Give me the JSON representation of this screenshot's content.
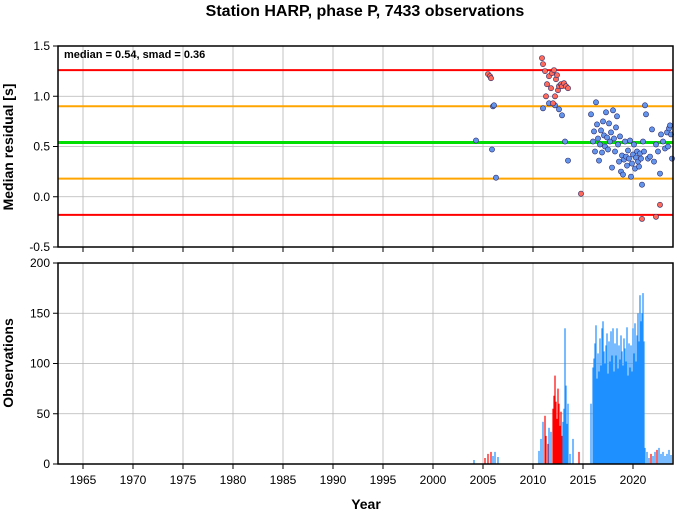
{
  "chart_data": [
    {
      "type": "scatter",
      "title": "Station HARP, phase P, 7433 observations",
      "ylabel": "Median residual [s]",
      "xlim": [
        1962.5,
        2024
      ],
      "ylim": [
        -0.5,
        1.5
      ],
      "xticks": [
        1965,
        1970,
        1975,
        1980,
        1985,
        1990,
        1995,
        2000,
        2005,
        2010,
        2015,
        2020
      ],
      "yticks": [
        "-0.5",
        "0.0",
        "0.5",
        "1.0",
        "1.5"
      ],
      "grid": true,
      "annotation": "median = 0.54, smad = 0.36",
      "reference_lines": [
        {
          "value": 1.26,
          "color": "#ff0000"
        },
        {
          "value": 0.9,
          "color": "#ffa500"
        },
        {
          "value": 0.54,
          "color": "#00dd00"
        },
        {
          "value": 0.18,
          "color": "#ffa500"
        },
        {
          "value": -0.18,
          "color": "#ff0000"
        }
      ],
      "series": [
        {
          "color": "#6495ed",
          "points": [
            [
              2004.3,
              0.56
            ],
            [
              2005.9,
              0.47
            ],
            [
              2006.0,
              0.9
            ],
            [
              2006.1,
              0.91
            ],
            [
              2006.3,
              0.19
            ],
            [
              2011.0,
              0.88
            ],
            [
              2011.6,
              0.93
            ],
            [
              2012.2,
              0.91
            ],
            [
              2012.6,
              0.87
            ],
            [
              2012.9,
              0.81
            ],
            [
              2013.2,
              0.55
            ],
            [
              2013.5,
              0.36
            ],
            [
              2015.8,
              0.82
            ],
            [
              2016.0,
              0.55
            ],
            [
              2016.1,
              0.65
            ],
            [
              2016.2,
              0.45
            ],
            [
              2016.3,
              0.94
            ],
            [
              2016.4,
              0.72
            ],
            [
              2016.5,
              0.58
            ],
            [
              2016.6,
              0.36
            ],
            [
              2016.7,
              0.52
            ],
            [
              2016.8,
              0.66
            ],
            [
              2016.9,
              0.44
            ],
            [
              2017.0,
              0.75
            ],
            [
              2017.1,
              0.61
            ],
            [
              2017.2,
              0.5
            ],
            [
              2017.3,
              0.84
            ],
            [
              2017.4,
              0.59
            ],
            [
              2017.5,
              0.47
            ],
            [
              2017.6,
              0.73
            ],
            [
              2017.7,
              0.55
            ],
            [
              2017.8,
              0.64
            ],
            [
              2017.9,
              0.29
            ],
            [
              2018.0,
              0.86
            ],
            [
              2018.1,
              0.58
            ],
            [
              2018.2,
              0.45
            ],
            [
              2018.3,
              0.69
            ],
            [
              2018.4,
              0.8
            ],
            [
              2018.5,
              0.52
            ],
            [
              2018.6,
              0.35
            ],
            [
              2018.7,
              0.6
            ],
            [
              2018.8,
              0.25
            ],
            [
              2018.9,
              0.41
            ],
            [
              2019.0,
              0.22
            ],
            [
              2019.1,
              0.37
            ],
            [
              2019.2,
              0.55
            ],
            [
              2019.3,
              0.4
            ],
            [
              2019.4,
              0.31
            ],
            [
              2019.5,
              0.46
            ],
            [
              2019.6,
              0.38
            ],
            [
              2019.7,
              0.56
            ],
            [
              2019.8,
              0.2
            ],
            [
              2019.9,
              0.33
            ],
            [
              2020.0,
              0.42
            ],
            [
              2020.1,
              0.52
            ],
            [
              2020.2,
              0.28
            ],
            [
              2020.3,
              0.39
            ],
            [
              2020.4,
              0.45
            ],
            [
              2020.5,
              0.35
            ],
            [
              2020.6,
              0.3
            ],
            [
              2020.7,
              0.43
            ],
            [
              2020.8,
              0.38
            ],
            [
              2020.9,
              0.12
            ],
            [
              2021.0,
              0.55
            ],
            [
              2021.1,
              0.45
            ],
            [
              2021.2,
              0.91
            ],
            [
              2021.3,
              0.82
            ],
            [
              2021.5,
              0.38
            ],
            [
              2021.7,
              0.4
            ],
            [
              2021.9,
              0.67
            ],
            [
              2022.1,
              0.35
            ],
            [
              2022.3,
              0.52
            ],
            [
              2022.5,
              0.45
            ],
            [
              2022.7,
              0.23
            ],
            [
              2022.8,
              0.62
            ],
            [
              2023.0,
              0.55
            ],
            [
              2023.2,
              0.48
            ],
            [
              2023.4,
              0.64
            ],
            [
              2023.5,
              0.5
            ],
            [
              2023.6,
              0.68
            ],
            [
              2023.7,
              0.71
            ],
            [
              2023.8,
              0.62
            ],
            [
              2023.9,
              0.38
            ]
          ]
        },
        {
          "color": "#ff6a5a",
          "points": [
            [
              2005.5,
              1.22
            ],
            [
              2005.7,
              1.2
            ],
            [
              2005.8,
              1.18
            ],
            [
              2010.9,
              1.38
            ],
            [
              2011.0,
              1.32
            ],
            [
              2011.2,
              1.25
            ],
            [
              2011.3,
              1.0
            ],
            [
              2011.4,
              1.12
            ],
            [
              2011.6,
              1.2
            ],
            [
              2011.8,
              1.08
            ],
            [
              2011.9,
              1.23
            ],
            [
              2012.0,
              0.93
            ],
            [
              2012.1,
              1.26
            ],
            [
              2012.2,
              1.0
            ],
            [
              2012.3,
              1.17
            ],
            [
              2012.4,
              1.21
            ],
            [
              2012.5,
              1.06
            ],
            [
              2012.6,
              1.1
            ],
            [
              2012.8,
              1.12
            ],
            [
              2012.9,
              1.1
            ],
            [
              2013.1,
              1.13
            ],
            [
              2013.3,
              1.1
            ],
            [
              2013.5,
              1.08
            ],
            [
              2014.8,
              0.03
            ],
            [
              2020.9,
              -0.22
            ],
            [
              2022.3,
              -0.2
            ],
            [
              2022.7,
              -0.08
            ]
          ]
        }
      ]
    },
    {
      "type": "bar",
      "xlabel": "Year",
      "ylabel": "Observations",
      "xlim": [
        1962.5,
        2024
      ],
      "ylim": [
        0,
        200
      ],
      "xticks": [
        1965,
        1970,
        1975,
        1980,
        1985,
        1990,
        1995,
        2000,
        2005,
        2010,
        2015,
        2020
      ],
      "yticks": [
        "0",
        "50",
        "100",
        "150",
        "200"
      ],
      "grid": true,
      "bars": [
        [
          2004.1,
          4,
          "b"
        ],
        [
          2005.2,
          6,
          "r"
        ],
        [
          2005.5,
          10,
          "r"
        ],
        [
          2005.8,
          12,
          "r"
        ],
        [
          2006.0,
          8,
          "b"
        ],
        [
          2006.2,
          12,
          "b"
        ],
        [
          2006.5,
          7,
          "b"
        ],
        [
          2010.6,
          13,
          "b"
        ],
        [
          2010.8,
          25,
          "b"
        ],
        [
          2011.0,
          42,
          "b"
        ],
        [
          2011.2,
          48,
          "r"
        ],
        [
          2011.3,
          28,
          "r"
        ],
        [
          2011.5,
          20,
          "r"
        ],
        [
          2011.6,
          36,
          "b"
        ],
        [
          2011.8,
          32,
          "b"
        ],
        [
          2012.0,
          55,
          "r"
        ],
        [
          2012.1,
          68,
          "r"
        ],
        [
          2012.2,
          88,
          "r"
        ],
        [
          2012.3,
          62,
          "r"
        ],
        [
          2012.4,
          45,
          "r"
        ],
        [
          2012.5,
          75,
          "r"
        ],
        [
          2012.6,
          60,
          "r"
        ],
        [
          2012.7,
          38,
          "r"
        ],
        [
          2012.8,
          52,
          "r"
        ],
        [
          2012.9,
          28,
          "r"
        ],
        [
          2013.0,
          42,
          "b"
        ],
        [
          2013.1,
          55,
          "b"
        ],
        [
          2013.2,
          135,
          "b"
        ],
        [
          2013.3,
          78,
          "b"
        ],
        [
          2013.4,
          40,
          "b"
        ],
        [
          2013.5,
          60,
          "b"
        ],
        [
          2013.7,
          10,
          "b"
        ],
        [
          2014.0,
          25,
          "b"
        ],
        [
          2014.6,
          12,
          "r"
        ],
        [
          2015.8,
          60,
          "b"
        ],
        [
          2016.0,
          96,
          "b"
        ],
        [
          2016.1,
          105,
          "b"
        ],
        [
          2016.2,
          120,
          "b"
        ],
        [
          2016.3,
          138,
          "b"
        ],
        [
          2016.4,
          85,
          "b"
        ],
        [
          2016.5,
          110,
          "b"
        ],
        [
          2016.6,
          92,
          "b"
        ],
        [
          2016.7,
          125,
          "b"
        ],
        [
          2016.8,
          98,
          "b"
        ],
        [
          2016.9,
          135,
          "b"
        ],
        [
          2017.0,
          142,
          "b"
        ],
        [
          2017.1,
          112,
          "b"
        ],
        [
          2017.2,
          100,
          "b"
        ],
        [
          2017.3,
          118,
          "b"
        ],
        [
          2017.4,
          130,
          "b"
        ],
        [
          2017.5,
          90,
          "b"
        ],
        [
          2017.6,
          122,
          "b"
        ],
        [
          2017.7,
          102,
          "b"
        ],
        [
          2017.8,
          132,
          "b"
        ],
        [
          2017.9,
          108,
          "b"
        ],
        [
          2018.0,
          135,
          "b"
        ],
        [
          2018.1,
          92,
          "b"
        ],
        [
          2018.2,
          120,
          "b"
        ],
        [
          2018.3,
          108,
          "b"
        ],
        [
          2018.4,
          135,
          "b"
        ],
        [
          2018.5,
          95,
          "b"
        ],
        [
          2018.6,
          118,
          "b"
        ],
        [
          2018.7,
          104,
          "b"
        ],
        [
          2018.8,
          128,
          "b"
        ],
        [
          2018.9,
          112,
          "b"
        ],
        [
          2019.0,
          98,
          "b"
        ],
        [
          2019.1,
          125,
          "b"
        ],
        [
          2019.2,
          115,
          "b"
        ],
        [
          2019.3,
          102,
          "b"
        ],
        [
          2019.4,
          136,
          "b"
        ],
        [
          2019.5,
          88,
          "b"
        ],
        [
          2019.6,
          120,
          "b"
        ],
        [
          2019.7,
          96,
          "b"
        ],
        [
          2019.8,
          118,
          "b"
        ],
        [
          2019.9,
          92,
          "b"
        ],
        [
          2020.0,
          135,
          "b"
        ],
        [
          2020.1,
          110,
          "b"
        ],
        [
          2020.2,
          140,
          "b"
        ],
        [
          2020.3,
          102,
          "b"
        ],
        [
          2020.4,
          128,
          "b"
        ],
        [
          2020.5,
          150,
          "b"
        ],
        [
          2020.6,
          122,
          "b"
        ],
        [
          2020.7,
          168,
          "b"
        ],
        [
          2020.8,
          142,
          "b"
        ],
        [
          2020.9,
          150,
          "b"
        ],
        [
          2021.0,
          170,
          "b"
        ],
        [
          2021.1,
          122,
          "b"
        ],
        [
          2021.2,
          16,
          "b"
        ],
        [
          2021.4,
          12,
          "b"
        ],
        [
          2021.6,
          6,
          "b"
        ],
        [
          2021.8,
          10,
          "r"
        ],
        [
          2022.0,
          8,
          "b"
        ],
        [
          2022.2,
          12,
          "b"
        ],
        [
          2022.4,
          14,
          "r"
        ],
        [
          2022.6,
          16,
          "b"
        ],
        [
          2022.8,
          10,
          "b"
        ],
        [
          2023.0,
          12,
          "b"
        ],
        [
          2023.2,
          8,
          "b"
        ],
        [
          2023.4,
          10,
          "b"
        ],
        [
          2023.6,
          14,
          "b"
        ],
        [
          2023.8,
          9,
          "b"
        ]
      ]
    }
  ]
}
